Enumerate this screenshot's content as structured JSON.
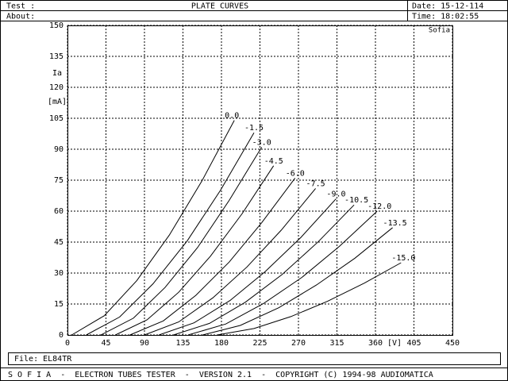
{
  "header": {
    "test_label": "Test :",
    "about_label": "About:",
    "title": "PLATE CURVES",
    "date": "Date: 15-12-114",
    "time": "Time: 18:02:55"
  },
  "chart_data": {
    "type": "line",
    "watermark": "Sofia",
    "ylabel": "Ia",
    "yunit": "[mA]",
    "xlabel": "[V]",
    "xlim": [
      0,
      450
    ],
    "ylim": [
      0,
      150
    ],
    "xticks": [
      0,
      45,
      90,
      135,
      180,
      225,
      270,
      315,
      360,
      405,
      450
    ],
    "yticks": [
      0,
      15,
      30,
      45,
      60,
      75,
      90,
      105,
      120,
      135,
      150
    ],
    "grid": true,
    "color": "#000000",
    "series": [
      {
        "name": "0.0",
        "x": [
          5,
          43,
          81,
          119,
          157,
          195
        ],
        "values": [
          0,
          9.3,
          26.3,
          48.4,
          74.5,
          104
        ]
      },
      {
        "name": "-1.5",
        "x": [
          22,
          61,
          100,
          140,
          179,
          218
        ],
        "values": [
          0,
          8.7,
          24.8,
          45.6,
          70.2,
          98
        ]
      },
      {
        "name": "-3.0",
        "x": [
          39,
          77,
          114,
          152,
          189,
          227
        ],
        "values": [
          0,
          8.1,
          23,
          42.3,
          65.2,
          91
        ]
      },
      {
        "name": "-4.5",
        "x": [
          56,
          93,
          130,
          167,
          204,
          241
        ],
        "values": [
          0,
          7.3,
          20.7,
          38.1,
          58.7,
          82
        ]
      },
      {
        "name": "-6.0",
        "x": [
          73,
          112,
          150,
          189,
          227,
          266
        ],
        "values": [
          0,
          6.8,
          19.2,
          35.3,
          54.4,
          76
        ]
      },
      {
        "name": "-7.5",
        "x": [
          90,
          130,
          170,
          210,
          250,
          290
        ],
        "values": [
          0,
          6.3,
          18,
          33,
          50.8,
          71
        ]
      },
      {
        "name": "-9.0",
        "x": [
          107,
          148,
          190,
          231,
          273,
          314
        ],
        "values": [
          0,
          5.9,
          16.7,
          30.7,
          47.3,
          66
        ]
      },
      {
        "name": "-10.5",
        "x": [
          124,
          166,
          208,
          251,
          293,
          335
        ],
        "values": [
          0,
          5.6,
          15.9,
          29.3,
          45.1,
          63
        ]
      },
      {
        "name": "-12.0",
        "x": [
          141,
          185,
          229,
          274,
          318,
          362
        ],
        "values": [
          0,
          5.3,
          15.2,
          27.9,
          43,
          60
        ]
      },
      {
        "name": "-13.5",
        "x": [
          158,
          202,
          247,
          291,
          336,
          380
        ],
        "values": [
          0,
          4.6,
          13.2,
          24.2,
          37.2,
          52
        ]
      },
      {
        "name": "-15.0",
        "x": [
          175,
          218,
          261,
          304,
          347,
          390
        ],
        "values": [
          0,
          3.1,
          8.9,
          16.3,
          25.1,
          35
        ]
      }
    ]
  },
  "file": "File: EL84TR",
  "footer": "S O F I A  -  ELECTRON TUBES TESTER  -  VERSION 2.1  -  COPYRIGHT (C) 1994-98 AUDIOMATICA"
}
